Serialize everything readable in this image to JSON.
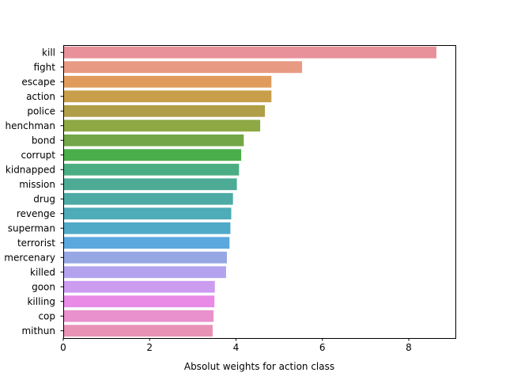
{
  "chart_data": {
    "type": "bar",
    "orientation": "horizontal",
    "title": "",
    "xlabel": "Absolut weights for action class",
    "ylabel": "",
    "xlim": [
      0,
      9.08
    ],
    "xticks": [
      0,
      2,
      4,
      6,
      8
    ],
    "grid": false,
    "categories": [
      "kill",
      "fight",
      "escape",
      "action",
      "police",
      "henchman",
      "bond",
      "corrupt",
      "kidnapped",
      "mission",
      "drug",
      "revenge",
      "superman",
      "terrorist",
      "mercenary",
      "killed",
      "goon",
      "killing",
      "cop",
      "mithun"
    ],
    "values": [
      8.64,
      5.53,
      4.82,
      4.82,
      4.67,
      4.56,
      4.18,
      4.12,
      4.07,
      4.02,
      3.93,
      3.89,
      3.87,
      3.85,
      3.79,
      3.77,
      3.51,
      3.5,
      3.48,
      3.46
    ],
    "colors": [
      "#e8919a",
      "#e89a82",
      "#e09b5c",
      "#c89e4a",
      "#b09e48",
      "#8ea844",
      "#72a646",
      "#4aae4a",
      "#4bae82",
      "#4dab95",
      "#4daaa5",
      "#4eabb8",
      "#4faac8",
      "#5aa8de",
      "#96a7e4",
      "#b3a2ee",
      "#cb9cf0",
      "#e88ae6",
      "#e891cc",
      "#e892b5"
    ]
  }
}
